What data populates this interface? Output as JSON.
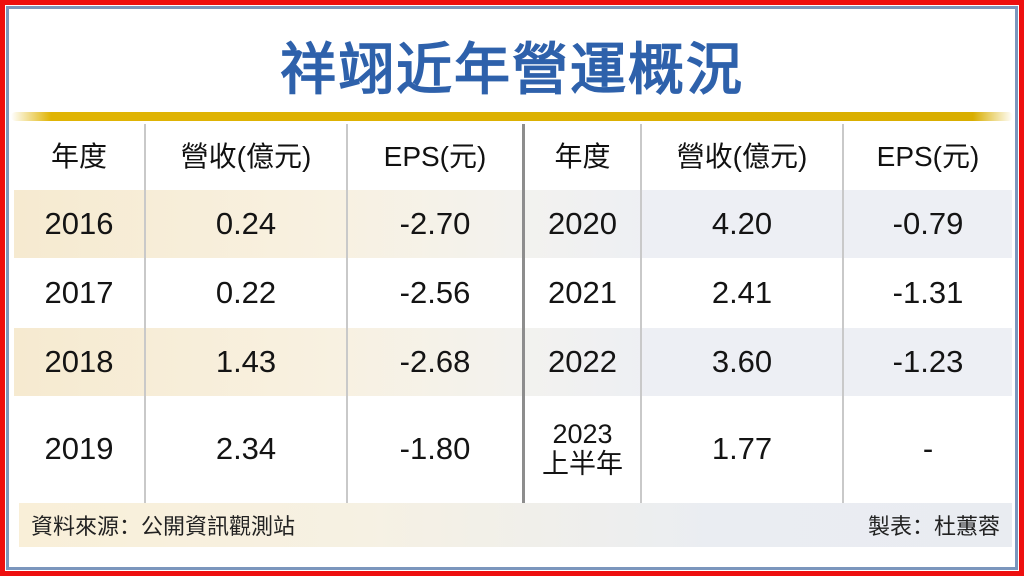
{
  "title": "祥翊近年營運概況",
  "table": {
    "headers": [
      "年度",
      "營收(億元)",
      "EPS(元)"
    ],
    "rows": [
      {
        "l_year": "2016",
        "l_rev": "0.24",
        "l_eps": "-2.70",
        "r_year": "2020",
        "r_rev": "4.20",
        "r_eps": "-0.79"
      },
      {
        "l_year": "2017",
        "l_rev": "0.22",
        "l_eps": "-2.56",
        "r_year": "2021",
        "r_rev": "2.41",
        "r_eps": "-1.31"
      },
      {
        "l_year": "2018",
        "l_rev": "1.43",
        "l_eps": "-2.68",
        "r_year": "2022",
        "r_rev": "3.60",
        "r_eps": "-1.23"
      },
      {
        "l_year": "2019",
        "l_rev": "2.34",
        "l_eps": "-1.80",
        "r_year": "2023",
        "r_year_sub": "上半年",
        "r_rev": "1.77",
        "r_eps": "-"
      }
    ]
  },
  "footer": {
    "source": "資料來源：公開資訊觀測站",
    "credit": "製表：杜蕙蓉"
  },
  "colors": {
    "frame_red": "#ee0f0f",
    "frame_blue": "#7b96bd",
    "title_blue": "#2e61ab",
    "rule_gold": "#e0b404",
    "row_beige": "#f6ead0",
    "row_bluegray": "#edeff4",
    "divider_light": "#c9c9c9",
    "divider_dark": "#8d8d8d"
  },
  "chart_data": {
    "type": "table",
    "title": "祥翊近年營運概況",
    "columns": [
      "年度",
      "營收(億元)",
      "EPS(元)"
    ],
    "rows": [
      [
        "2016",
        0.24,
        -2.7
      ],
      [
        "2017",
        0.22,
        -2.56
      ],
      [
        "2018",
        1.43,
        -2.68
      ],
      [
        "2019",
        2.34,
        -1.8
      ],
      [
        "2020",
        4.2,
        -0.79
      ],
      [
        "2021",
        2.41,
        -1.31
      ],
      [
        "2022",
        3.6,
        -1.23
      ],
      [
        "2023上半年",
        1.77,
        null
      ]
    ],
    "source": "公開資訊觀測站",
    "credit": "杜蕙蓉"
  }
}
